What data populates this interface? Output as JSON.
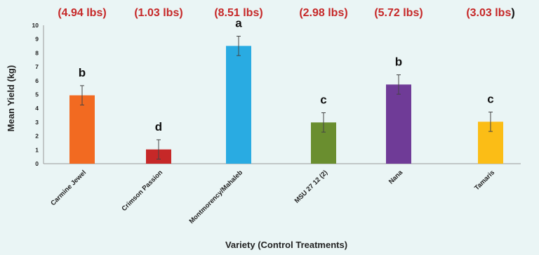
{
  "chart_data": {
    "type": "bar",
    "categories": [
      "Carmine Jewel",
      "Crimson Passion",
      "Montmorency/Mahaleb",
      "MSU 27 12 (2)",
      "Nana",
      "Tamaris"
    ],
    "values": [
      4.94,
      1.03,
      8.51,
      2.98,
      5.72,
      3.03
    ],
    "errors": [
      0.7,
      0.7,
      0.7,
      0.7,
      0.7,
      0.7
    ],
    "colors": [
      "#f26a21",
      "#c62828",
      "#29abe2",
      "#6a8e2f",
      "#6f3b97",
      "#fbbd16"
    ],
    "significance_letters": [
      "b",
      "d",
      "a",
      "c",
      "b",
      "c"
    ],
    "lbs_labels": [
      "(4.94 lbs)",
      "(1.03 lbs)",
      "(8.51 lbs)",
      "(2.98 lbs)",
      "(5.72 lbs)",
      "(3.03 lbs"
    ],
    "lbs_label_suffix": ")",
    "xlabel": "Variety (Control Treatments)",
    "ylabel": "Mean Yield (kg)",
    "ylim": [
      0,
      10
    ],
    "yticks": [
      "0",
      "1",
      "2",
      "3",
      "4",
      "5",
      "6",
      "7",
      "8",
      "9",
      "10"
    ],
    "grid": false,
    "legend": "none"
  }
}
